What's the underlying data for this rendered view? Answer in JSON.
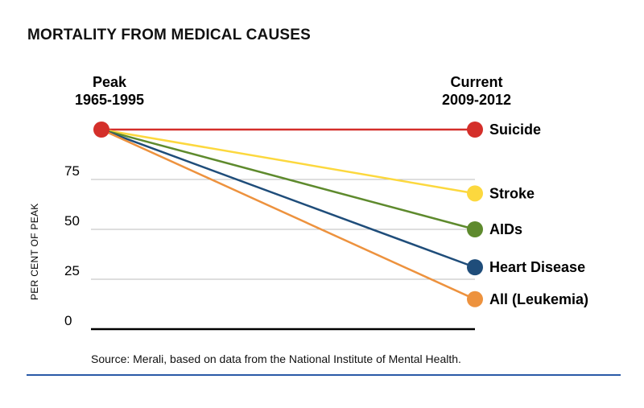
{
  "chart_data": {
    "type": "line",
    "title": "MORTALITY FROM MEDICAL CAUSES",
    "x": [
      "Peak\n1965-1995",
      "Current\n2009-2012"
    ],
    "x_heads": {
      "left": [
        "Peak",
        "1965-1995"
      ],
      "right": [
        "Current",
        "2009-2012"
      ]
    },
    "ylabel": "PER CENT OF PEAK",
    "ylim": [
      0,
      100
    ],
    "yticks": [
      0,
      25,
      50,
      75
    ],
    "grid": true,
    "series": [
      {
        "name": "Suicide",
        "values": [
          100,
          100
        ],
        "color": "#d42f2a"
      },
      {
        "name": "Stroke",
        "values": [
          100,
          68
        ],
        "color": "#fcd83e"
      },
      {
        "name": "AIDs",
        "values": [
          100,
          50
        ],
        "color": "#5e8a2d"
      },
      {
        "name": "Heart Disease",
        "values": [
          100,
          31
        ],
        "color": "#1f4d7a"
      },
      {
        "name": "All (Leukemia)",
        "values": [
          100,
          15
        ],
        "color": "#ed923e"
      }
    ],
    "source": "Source: Merali, based on data from the National  Institute of Mental Health."
  }
}
